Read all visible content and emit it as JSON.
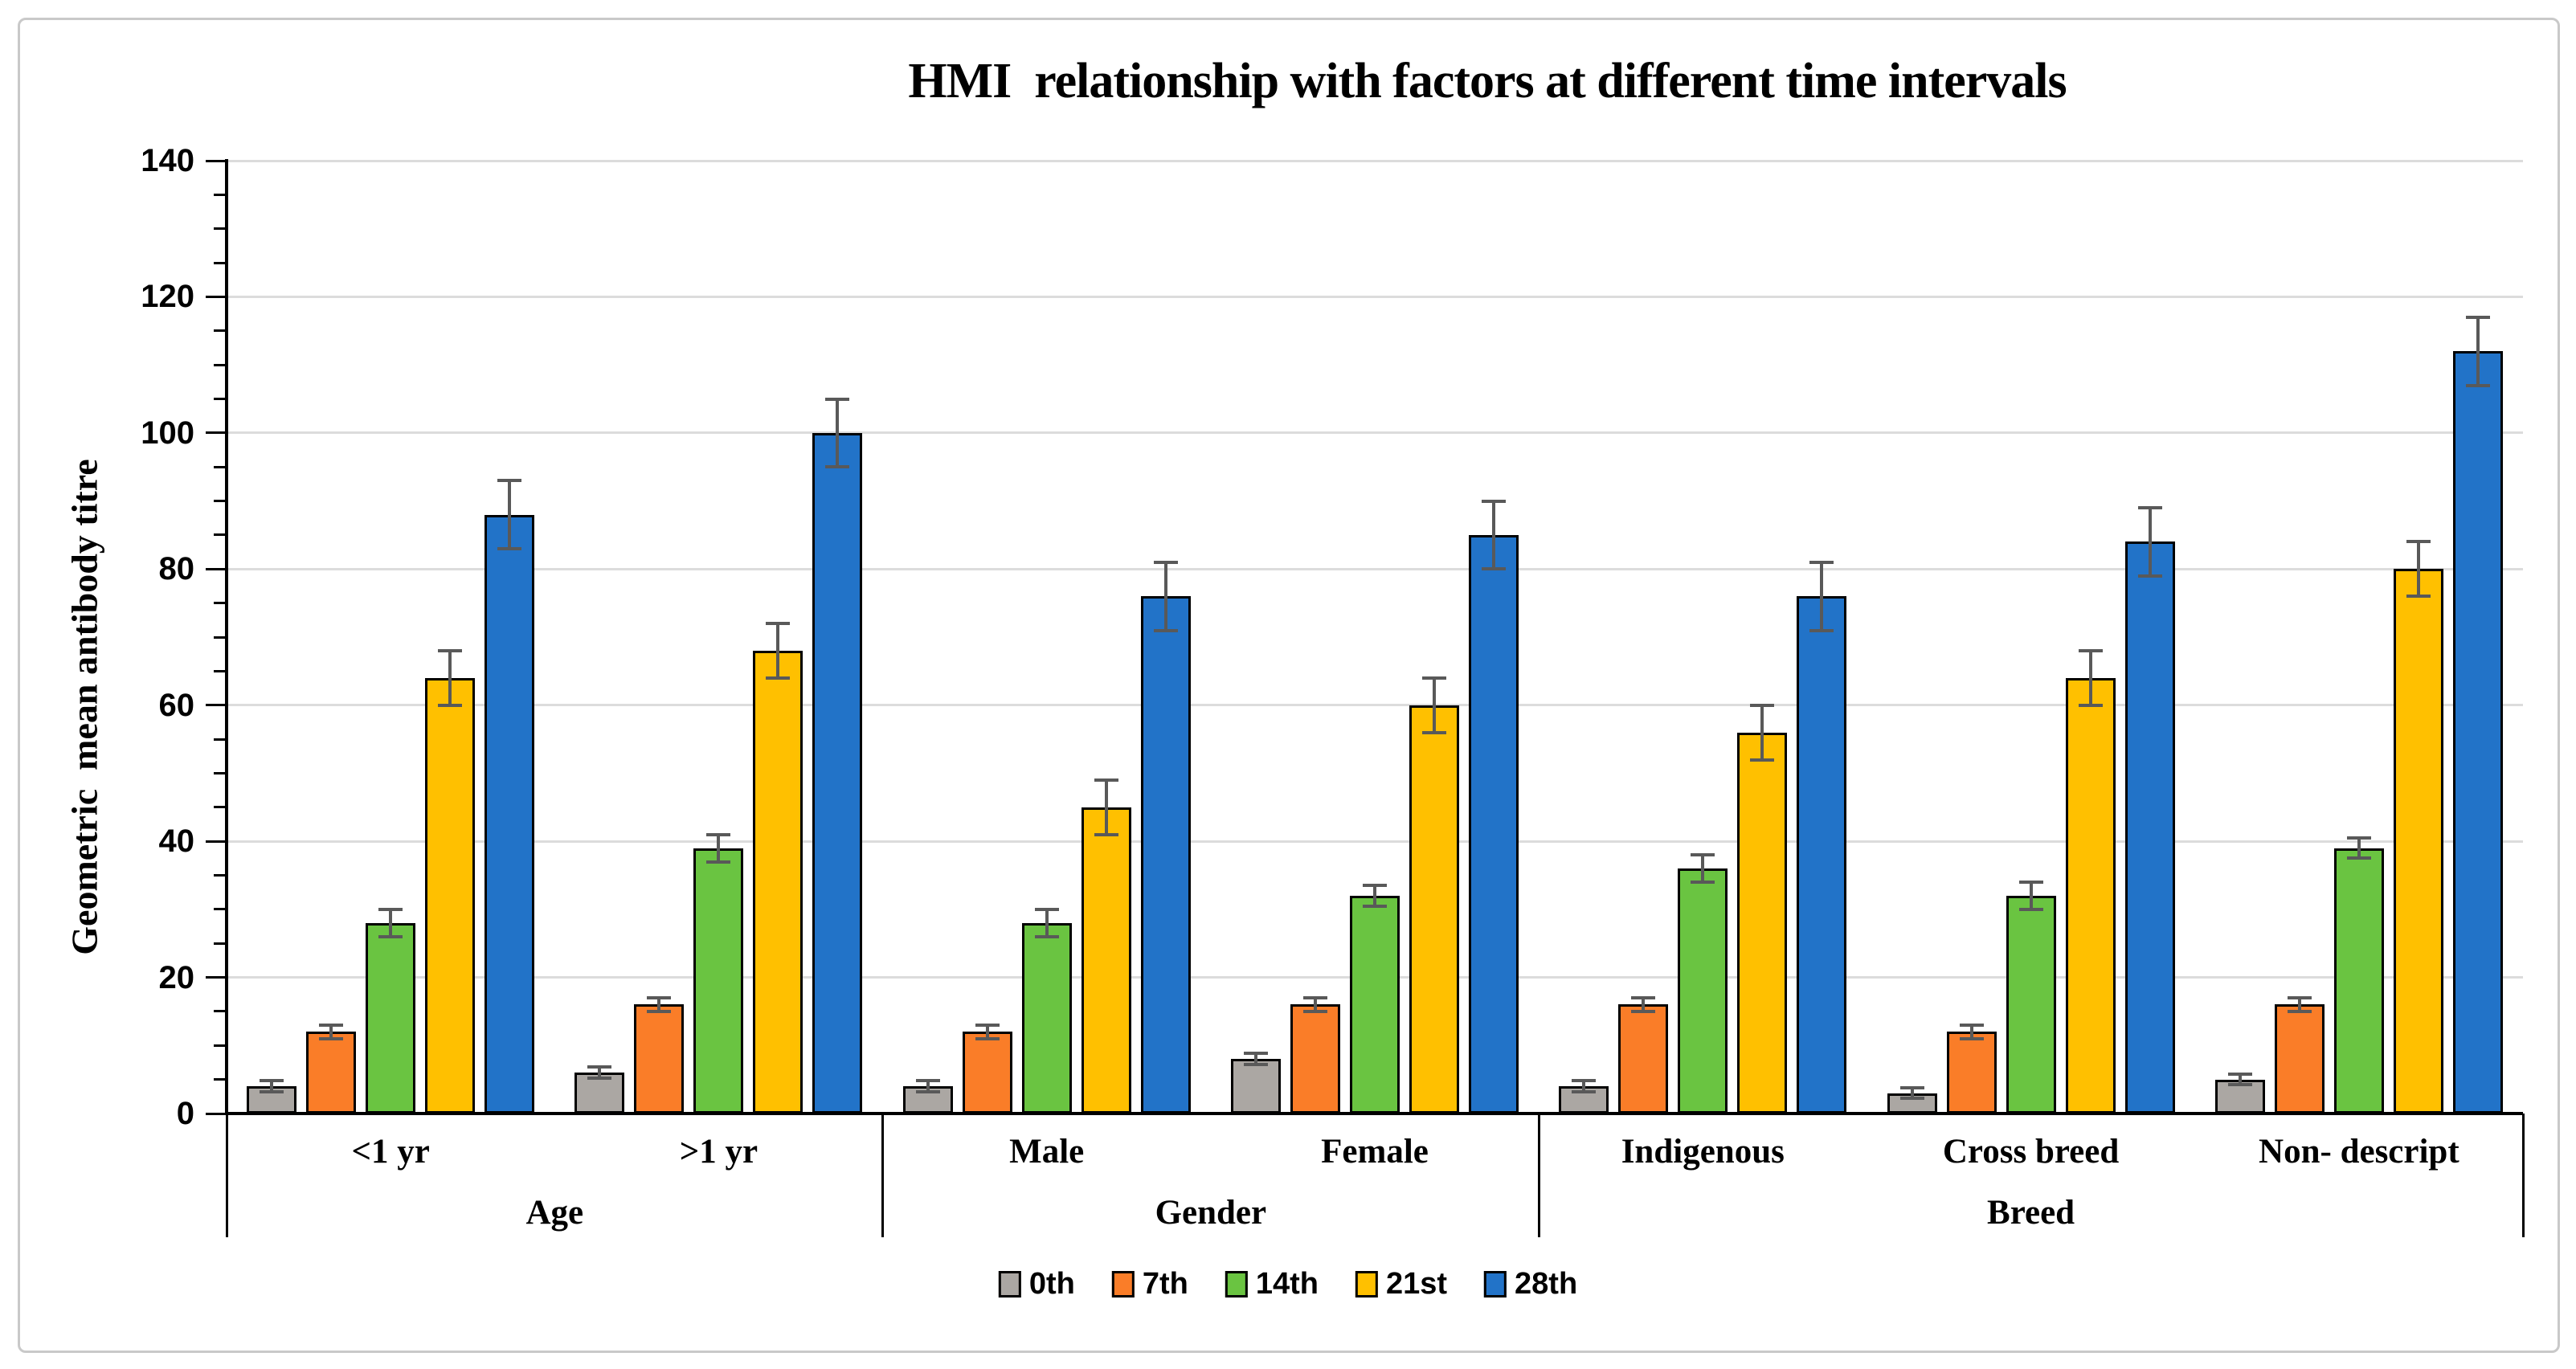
{
  "figure": {
    "title": "HMI  relationship with factors at different time intervals"
  },
  "chart_data": {
    "type": "bar",
    "title": "HMI  relationship with factors at different time intervals",
    "xlabel": "",
    "ylabel": "Geometric  mean antibody titre",
    "y_axis": {
      "title": "Geometric  mean antibody titre",
      "min": 0,
      "max": 140,
      "major_step": 20,
      "minor_step": 5,
      "tick_labels": [
        "0",
        "20",
        "40",
        "60",
        "80",
        "100",
        "120",
        "140"
      ]
    },
    "grid": true,
    "legend_position": "bottom",
    "categories": [
      "<1 yr",
      ">1 yr",
      "Male",
      "Female",
      "Indigenous",
      "Cross breed",
      "Non- descript"
    ],
    "category_groups": [
      {
        "label": "Age",
        "span": 2
      },
      {
        "label": "Gender",
        "span": 2
      },
      {
        "label": "Breed",
        "span": 3
      }
    ],
    "series": [
      {
        "name": "0th",
        "color": "#aba7a3",
        "values": [
          4,
          6,
          4,
          8,
          4,
          3,
          5
        ],
        "errors": [
          0.8,
          0.8,
          0.8,
          0.8,
          0.8,
          0.8,
          0.8
        ]
      },
      {
        "name": "7th",
        "color": "#fa7d28",
        "values": [
          12,
          16,
          12,
          16,
          16,
          12,
          16
        ],
        "errors": [
          1,
          1,
          1,
          1,
          1,
          1,
          1
        ]
      },
      {
        "name": "14th",
        "color": "#6ac441",
        "values": [
          28,
          39,
          28,
          32,
          36,
          32,
          39
        ],
        "errors": [
          2,
          2,
          2,
          1.5,
          2,
          2,
          1.5
        ]
      },
      {
        "name": "21st",
        "color": "#ffc000",
        "values": [
          64,
          68,
          45,
          60,
          56,
          64,
          80
        ],
        "errors": [
          4,
          4,
          4,
          4,
          4,
          4,
          4
        ]
      },
      {
        "name": "28th",
        "color": "#2273c8",
        "values": [
          88,
          100,
          76,
          85,
          76,
          84,
          112
        ],
        "errors": [
          5,
          5,
          5,
          5,
          5,
          5,
          5
        ]
      }
    ],
    "colors": {
      "error_bar": "#595959",
      "gridline": "#dcdcdc",
      "axis": "#000000",
      "bar_outline": "#000000",
      "frame_border": "#c9c9c9",
      "background": "#ffffff"
    }
  }
}
